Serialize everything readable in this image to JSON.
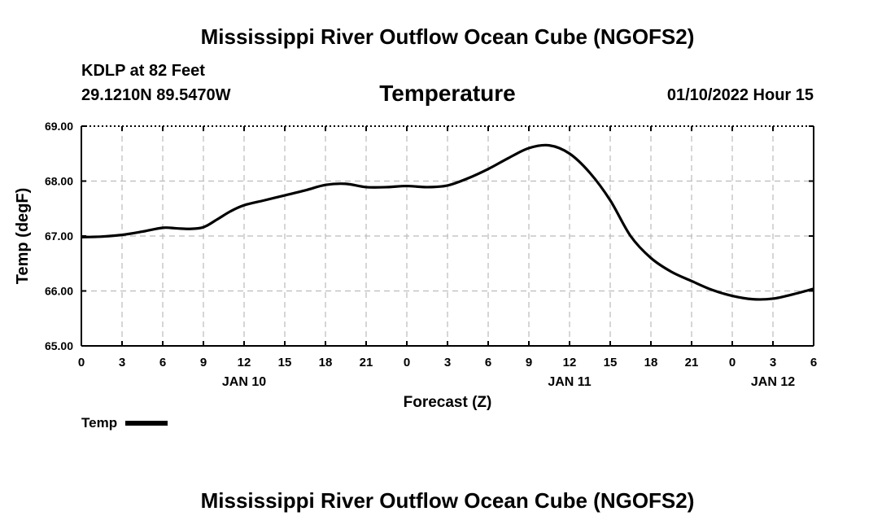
{
  "header": {
    "title": "Mississippi River Outflow Ocean Cube (NGOFS2)",
    "station": "KDLP at 82 Feet",
    "coords": "29.1210N  89.5470W",
    "subtitle": "Temperature",
    "datetime": "01/10/2022 Hour 15"
  },
  "footer": {
    "title": "Mississippi River Outflow Ocean Cube (NGOFS2)"
  },
  "legend": {
    "label": "Temp",
    "color": "#000000"
  },
  "chart_data": {
    "type": "line",
    "title": "Temperature",
    "xlabel": "Forecast (Z)",
    "ylabel": "Temp (degF)",
    "ylim": [
      65.0,
      69.0
    ],
    "xlim": [
      0,
      54
    ],
    "grid": true,
    "y_ticks": [
      65.0,
      66.0,
      67.0,
      68.0,
      69.0
    ],
    "y_tick_labels": [
      "65.00",
      "66.00",
      "67.00",
      "68.00",
      "69.00"
    ],
    "x_ticks": [
      0,
      3,
      6,
      9,
      12,
      15,
      18,
      21,
      24,
      27,
      30,
      33,
      36,
      39,
      42,
      45,
      48,
      51,
      54
    ],
    "x_tick_labels": [
      "0",
      "3",
      "6",
      "9",
      "12",
      "15",
      "18",
      "21",
      "0",
      "3",
      "6",
      "9",
      "12",
      "15",
      "18",
      "21",
      "0",
      "3",
      "6"
    ],
    "day_labels": [
      {
        "label": "JAN 10",
        "x": 12
      },
      {
        "label": "JAN 11",
        "x": 36
      },
      {
        "label": "JAN 12",
        "x": 51
      }
    ],
    "series": [
      {
        "name": "Temp",
        "color": "#000000",
        "x": [
          0,
          1.5,
          3,
          4.5,
          6,
          7,
          8,
          9,
          10,
          11,
          12,
          13.5,
          15,
          16.5,
          18,
          19.5,
          21,
          22.5,
          24,
          25.5,
          27,
          28.5,
          30,
          31.5,
          33,
          34.5,
          36,
          37.5,
          39,
          40.5,
          42,
          43.5,
          45,
          46.5,
          48,
          49.5,
          51,
          52.5,
          54
        ],
        "values": [
          66.98,
          66.99,
          67.02,
          67.08,
          67.15,
          67.14,
          67.13,
          67.16,
          67.3,
          67.45,
          67.56,
          67.65,
          67.74,
          67.83,
          67.93,
          67.95,
          67.89,
          67.89,
          67.91,
          67.89,
          67.92,
          68.05,
          68.22,
          68.42,
          68.6,
          68.65,
          68.5,
          68.15,
          67.65,
          67.0,
          66.6,
          66.35,
          66.18,
          66.02,
          65.91,
          65.85,
          65.86,
          65.94,
          66.04
        ]
      }
    ]
  }
}
